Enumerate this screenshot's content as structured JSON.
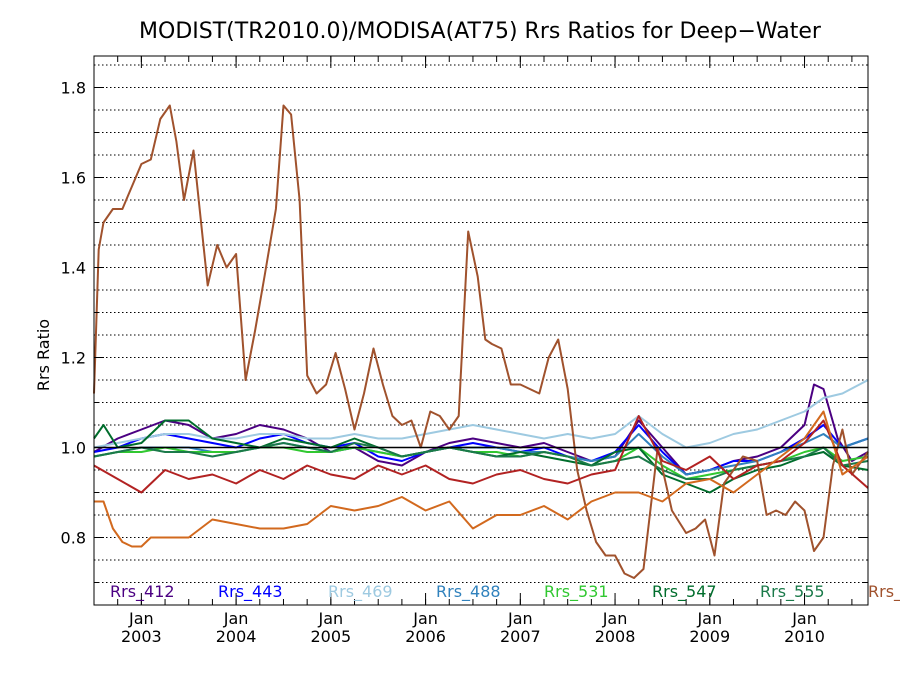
{
  "chart_data": {
    "type": "line",
    "title": "MODIST(TR2010.0)/MODISA(AT75)  Rrs Ratios for Deep−Water",
    "xlabel": "",
    "ylabel": "Rrs Ratio",
    "xlim": [
      2002.5,
      2010.67
    ],
    "ylim": [
      0.65,
      1.87
    ],
    "ytick_values": [
      0.8,
      1.0,
      1.2,
      1.4,
      1.6,
      1.8
    ],
    "ytick_labels": [
      "0.8",
      "1.0",
      "1.2",
      "1.4",
      "1.6",
      "1.8"
    ],
    "x_ticks": [
      {
        "x": 2003,
        "month": "Jan",
        "year": "2003"
      },
      {
        "x": 2004,
        "month": "Jan",
        "year": "2004"
      },
      {
        "x": 2005,
        "month": "Jan",
        "year": "2005"
      },
      {
        "x": 2006,
        "month": "Jan",
        "year": "2006"
      },
      {
        "x": 2007,
        "month": "Jan",
        "year": "2007"
      },
      {
        "x": 2008,
        "month": "Jan",
        "year": "2008"
      },
      {
        "x": 2009,
        "month": "Jan",
        "year": "2009"
      },
      {
        "x": 2010,
        "month": "Jan",
        "year": "2010"
      }
    ],
    "reference_line": 1.0,
    "grid": "horizontal dotted",
    "legend_placement": "bottom, inside plot",
    "series": [
      {
        "name": "Rrs_412",
        "color": "#4b0082",
        "x": [
          2002.5,
          2002.75,
          2003.0,
          2003.25,
          2003.5,
          2003.75,
          2004.0,
          2004.25,
          2004.5,
          2004.75,
          2005.0,
          2005.25,
          2005.5,
          2005.75,
          2006.0,
          2006.25,
          2006.5,
          2006.75,
          2007.0,
          2007.25,
          2007.5,
          2007.75,
          2008.0,
          2008.25,
          2008.5,
          2008.75,
          2009.0,
          2009.25,
          2009.5,
          2009.75,
          2010.0,
          2010.1,
          2010.2,
          2010.35,
          2010.5,
          2010.67
        ],
        "y": [
          0.99,
          1.02,
          1.04,
          1.06,
          1.05,
          1.02,
          1.03,
          1.05,
          1.04,
          1.02,
          0.99,
          1.0,
          0.97,
          0.96,
          0.99,
          1.01,
          1.02,
          1.01,
          1.0,
          1.01,
          0.99,
          0.97,
          0.98,
          1.06,
          1.0,
          0.94,
          0.95,
          0.97,
          0.98,
          1.0,
          1.05,
          1.14,
          1.13,
          1.02,
          0.97,
          0.99
        ]
      },
      {
        "name": "Rrs_443",
        "color": "#0000ff",
        "x": [
          2002.5,
          2002.75,
          2003.0,
          2003.25,
          2003.5,
          2003.75,
          2004.0,
          2004.25,
          2004.5,
          2004.75,
          2005.0,
          2005.25,
          2005.5,
          2005.75,
          2006.0,
          2006.25,
          2006.5,
          2006.75,
          2007.0,
          2007.25,
          2007.5,
          2007.75,
          2008.0,
          2008.25,
          2008.5,
          2008.75,
          2009.0,
          2009.25,
          2009.5,
          2009.75,
          2010.0,
          2010.2,
          2010.4,
          2010.67
        ],
        "y": [
          0.99,
          1.0,
          1.02,
          1.03,
          1.02,
          1.01,
          1.0,
          1.02,
          1.03,
          1.01,
          1.0,
          1.01,
          0.98,
          0.97,
          0.99,
          1.0,
          1.01,
          1.0,
          0.99,
          1.0,
          0.98,
          0.97,
          0.99,
          1.05,
          0.99,
          0.94,
          0.95,
          0.97,
          0.97,
          0.99,
          1.02,
          1.05,
          1.0,
          1.02
        ]
      },
      {
        "name": "Rrs_469",
        "color": "#9ecae1",
        "x": [
          2002.5,
          2002.75,
          2003.0,
          2003.25,
          2003.5,
          2003.75,
          2004.0,
          2004.25,
          2004.5,
          2004.75,
          2005.0,
          2005.25,
          2005.5,
          2005.75,
          2006.0,
          2006.25,
          2006.5,
          2006.75,
          2007.0,
          2007.25,
          2007.5,
          2007.75,
          2008.0,
          2008.25,
          2008.5,
          2008.75,
          2009.0,
          2009.25,
          2009.5,
          2009.75,
          2010.0,
          2010.2,
          2010.4,
          2010.67
        ],
        "y": [
          1.0,
          1.01,
          1.02,
          1.03,
          1.03,
          1.02,
          1.02,
          1.03,
          1.03,
          1.02,
          1.02,
          1.03,
          1.02,
          1.02,
          1.03,
          1.04,
          1.05,
          1.04,
          1.03,
          1.02,
          1.03,
          1.02,
          1.03,
          1.07,
          1.03,
          1.0,
          1.01,
          1.03,
          1.04,
          1.06,
          1.08,
          1.11,
          1.12,
          1.15
        ]
      },
      {
        "name": "Rrs_488",
        "color": "#3182bd",
        "x": [
          2002.5,
          2002.75,
          2003.0,
          2003.25,
          2003.5,
          2003.75,
          2004.0,
          2004.25,
          2004.5,
          2004.75,
          2005.0,
          2005.25,
          2005.5,
          2005.75,
          2006.0,
          2006.25,
          2006.5,
          2006.75,
          2007.0,
          2007.25,
          2007.5,
          2007.75,
          2008.0,
          2008.25,
          2008.5,
          2008.75,
          2009.0,
          2009.25,
          2009.5,
          2009.75,
          2010.0,
          2010.2,
          2010.4,
          2010.67
        ],
        "y": [
          0.98,
          0.99,
          1.0,
          1.0,
          1.0,
          0.99,
          0.99,
          1.0,
          1.01,
          1.0,
          0.99,
          1.0,
          0.99,
          0.98,
          0.99,
          1.0,
          1.0,
          1.0,
          0.99,
          0.99,
          0.98,
          0.97,
          0.98,
          1.03,
          0.98,
          0.94,
          0.95,
          0.96,
          0.97,
          0.99,
          1.01,
          1.03,
          1.0,
          1.02
        ]
      },
      {
        "name": "Rrs_531",
        "color": "#31c831",
        "x": [
          2002.5,
          2002.75,
          2003.0,
          2003.25,
          2003.5,
          2003.75,
          2004.0,
          2004.25,
          2004.5,
          2004.75,
          2005.0,
          2005.25,
          2005.5,
          2005.75,
          2006.0,
          2006.25,
          2006.5,
          2006.75,
          2007.0,
          2007.25,
          2007.5,
          2007.75,
          2008.0,
          2008.25,
          2008.5,
          2008.75,
          2009.0,
          2009.25,
          2009.5,
          2009.75,
          2010.0,
          2010.2,
          2010.4,
          2010.67
        ],
        "y": [
          0.98,
          0.99,
          0.99,
          1.0,
          0.99,
          0.99,
          0.99,
          1.0,
          1.0,
          0.99,
          0.99,
          1.0,
          0.99,
          0.98,
          0.99,
          1.0,
          0.99,
          0.99,
          0.98,
          0.99,
          0.98,
          0.96,
          0.97,
          1.0,
          0.96,
          0.93,
          0.94,
          0.95,
          0.96,
          0.97,
          0.99,
          1.0,
          0.97,
          0.98
        ]
      },
      {
        "name": "Rrs_547",
        "color": "#006d2c",
        "x": [
          2002.5,
          2002.6,
          2002.75,
          2003.0,
          2003.25,
          2003.5,
          2003.75,
          2004.0,
          2004.25,
          2004.5,
          2004.75,
          2005.0,
          2005.25,
          2005.5,
          2005.75,
          2006.0,
          2006.25,
          2006.5,
          2006.75,
          2007.0,
          2007.25,
          2007.5,
          2007.75,
          2008.0,
          2008.25,
          2008.5,
          2008.75,
          2009.0,
          2009.25,
          2009.5,
          2009.75,
          2010.0,
          2010.2,
          2010.4,
          2010.67
        ],
        "y": [
          1.02,
          1.05,
          1.0,
          1.01,
          1.06,
          1.06,
          1.02,
          1.01,
          1.0,
          1.02,
          1.01,
          1.0,
          1.02,
          1.0,
          0.98,
          0.99,
          1.0,
          0.99,
          0.98,
          0.99,
          0.98,
          0.97,
          0.96,
          0.99,
          1.0,
          0.94,
          0.92,
          0.9,
          0.93,
          0.95,
          0.96,
          0.98,
          0.99,
          0.96,
          0.95
        ]
      },
      {
        "name": "Rrs_555",
        "color": "#1b7a4a",
        "x": [
          2002.5,
          2002.75,
          2003.0,
          2003.25,
          2003.5,
          2003.75,
          2004.0,
          2004.25,
          2004.5,
          2004.75,
          2005.0,
          2005.25,
          2005.5,
          2005.75,
          2006.0,
          2006.25,
          2006.5,
          2006.75,
          2007.0,
          2007.25,
          2007.5,
          2007.75,
          2008.0,
          2008.25,
          2008.5,
          2008.75,
          2009.0,
          2009.25,
          2009.5,
          2009.75,
          2010.0,
          2010.2,
          2010.4,
          2010.67
        ],
        "y": [
          0.98,
          0.99,
          1.0,
          0.99,
          0.99,
          0.98,
          0.99,
          1.0,
          1.01,
          1.0,
          0.99,
          1.01,
          1.0,
          0.98,
          0.99,
          1.0,
          0.99,
          0.98,
          0.98,
          0.99,
          0.98,
          0.96,
          0.97,
          0.98,
          0.95,
          0.93,
          0.93,
          0.95,
          0.96,
          0.97,
          0.98,
          1.0,
          0.96,
          0.97
        ]
      },
      {
        "name": "Rrs_",
        "color": "#a0522d",
        "x": [
          2002.5,
          2002.55,
          2002.6,
          2002.7,
          2002.8,
          2002.9,
          2003.0,
          2003.1,
          2003.2,
          2003.3,
          2003.37,
          2003.45,
          2003.55,
          2003.7,
          2003.8,
          2003.9,
          2004.0,
          2004.1,
          2004.2,
          2004.3,
          2004.42,
          2004.5,
          2004.58,
          2004.67,
          2004.75,
          2004.85,
          2004.95,
          2005.05,
          2005.15,
          2005.25,
          2005.35,
          2005.45,
          2005.55,
          2005.65,
          2005.75,
          2005.85,
          2005.95,
          2006.05,
          2006.15,
          2006.25,
          2006.35,
          2006.45,
          2006.55,
          2006.63,
          2006.7,
          2006.8,
          2006.9,
          2007.0,
          2007.1,
          2007.2,
          2007.3,
          2007.4,
          2007.5,
          2007.6,
          2007.7,
          2007.8,
          2007.9,
          2008.0,
          2008.1,
          2008.2,
          2008.3,
          2008.45,
          2008.6,
          2008.75,
          2008.85,
          2008.95,
          2009.05,
          2009.15,
          2009.25,
          2009.35,
          2009.5,
          2009.6,
          2009.7,
          2009.8,
          2009.9,
          2010.0,
          2010.1,
          2010.2,
          2010.3,
          2010.4,
          2010.5,
          2010.67
        ],
        "y": [
          1.12,
          1.44,
          1.5,
          1.53,
          1.53,
          1.58,
          1.63,
          1.64,
          1.73,
          1.76,
          1.68,
          1.55,
          1.66,
          1.36,
          1.45,
          1.4,
          1.43,
          1.15,
          1.26,
          1.38,
          1.53,
          1.76,
          1.74,
          1.55,
          1.16,
          1.12,
          1.14,
          1.21,
          1.13,
          1.04,
          1.12,
          1.22,
          1.14,
          1.07,
          1.05,
          1.06,
          1.0,
          1.08,
          1.07,
          1.04,
          1.07,
          1.48,
          1.38,
          1.24,
          1.23,
          1.22,
          1.14,
          1.14,
          1.13,
          1.12,
          1.2,
          1.24,
          1.13,
          0.95,
          0.86,
          0.79,
          0.76,
          0.76,
          0.72,
          0.71,
          0.73,
          1.0,
          0.86,
          0.81,
          0.82,
          0.84,
          0.76,
          0.92,
          0.95,
          0.98,
          0.97,
          0.85,
          0.86,
          0.85,
          0.88,
          0.86,
          0.77,
          0.8,
          0.96,
          1.04,
          0.94,
          0.99
        ]
      },
      {
        "name": "",
        "color": "#b22222",
        "x": [
          2002.5,
          2002.75,
          2003.0,
          2003.25,
          2003.5,
          2003.75,
          2004.0,
          2004.25,
          2004.5,
          2004.75,
          2005.0,
          2005.25,
          2005.5,
          2005.75,
          2006.0,
          2006.25,
          2006.5,
          2006.75,
          2007.0,
          2007.25,
          2007.5,
          2007.75,
          2008.0,
          2008.25,
          2008.5,
          2008.75,
          2009.0,
          2009.25,
          2009.5,
          2009.75,
          2010.0,
          2010.2,
          2010.4,
          2010.67
        ],
        "y": [
          0.96,
          0.93,
          0.9,
          0.95,
          0.93,
          0.94,
          0.92,
          0.95,
          0.93,
          0.96,
          0.94,
          0.93,
          0.96,
          0.94,
          0.96,
          0.93,
          0.92,
          0.94,
          0.95,
          0.93,
          0.92,
          0.94,
          0.95,
          1.07,
          0.97,
          0.95,
          0.98,
          0.93,
          0.96,
          0.97,
          1.01,
          1.06,
          0.96,
          0.91
        ]
      },
      {
        "name": "",
        "color": "#d2691e",
        "x": [
          2002.5,
          2002.6,
          2002.7,
          2002.8,
          2002.9,
          2003.0,
          2003.1,
          2003.25,
          2003.5,
          2003.75,
          2004.0,
          2004.25,
          2004.5,
          2004.75,
          2005.0,
          2005.25,
          2005.5,
          2005.75,
          2006.0,
          2006.25,
          2006.5,
          2006.75,
          2007.0,
          2007.25,
          2007.5,
          2007.75,
          2008.0,
          2008.25,
          2008.5,
          2008.75,
          2009.0,
          2009.25,
          2009.5,
          2009.75,
          2010.0,
          2010.2,
          2010.4,
          2010.67
        ],
        "y": [
          0.88,
          0.88,
          0.82,
          0.79,
          0.78,
          0.78,
          0.8,
          0.8,
          0.8,
          0.84,
          0.83,
          0.82,
          0.82,
          0.83,
          0.87,
          0.86,
          0.87,
          0.89,
          0.86,
          0.88,
          0.82,
          0.85,
          0.85,
          0.87,
          0.84,
          0.88,
          0.9,
          0.9,
          0.88,
          0.92,
          0.93,
          0.9,
          0.94,
          0.98,
          1.02,
          1.08,
          0.94,
          0.98
        ]
      }
    ],
    "legend": [
      "Rrs_412",
      "Rrs_443",
      "Rrs_469",
      "Rrs_488",
      "Rrs_531",
      "Rrs_547",
      "Rrs_555",
      "Rrs_"
    ]
  }
}
